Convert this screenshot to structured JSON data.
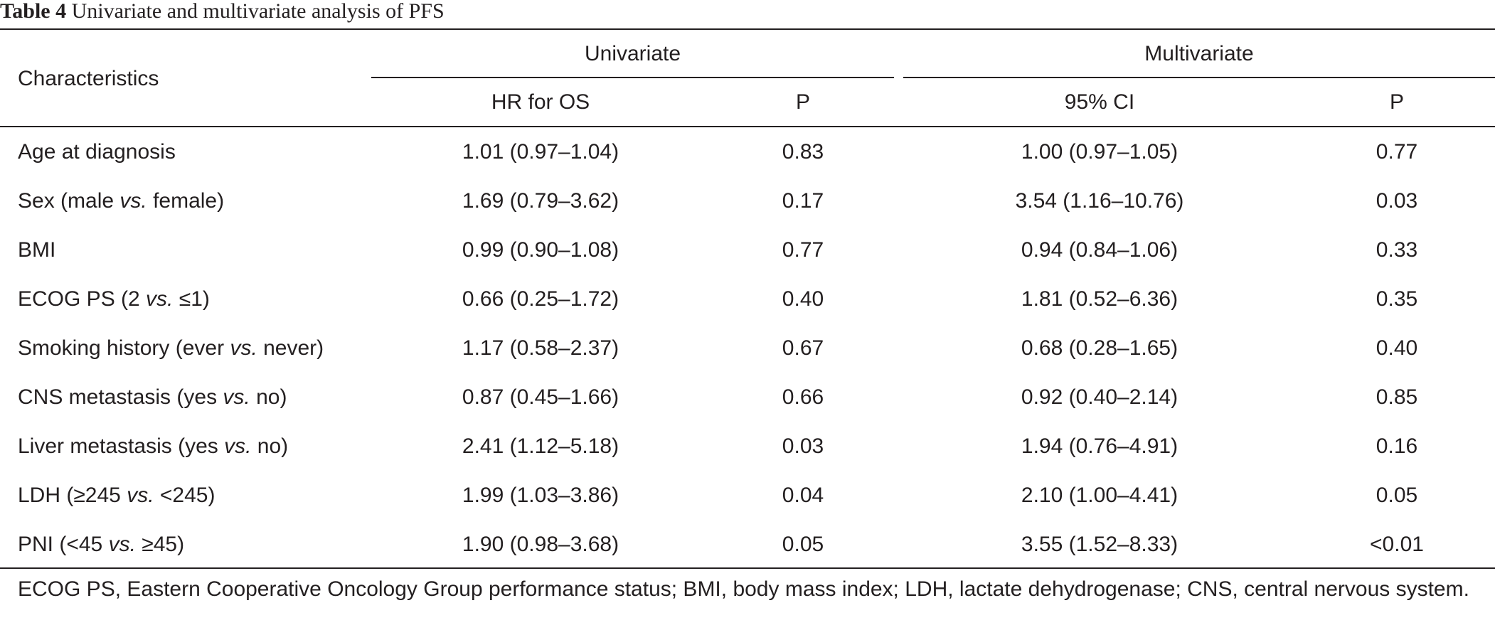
{
  "caption": {
    "label": "Table 4",
    "title": "Univariate and multivariate analysis of PFS"
  },
  "header": {
    "characteristics": "Characteristics",
    "group_univariate": "Univariate",
    "group_multivariate": "Multivariate",
    "hr_for_os": "HR for OS",
    "p_uni": "P",
    "ci_95": "95% CI",
    "p_multi": "P"
  },
  "rows": [
    {
      "label_pre": "Age at diagnosis",
      "label_vs": "",
      "label_post": "",
      "hr": "1.01 (0.97–1.04)",
      "p_uni": "0.83",
      "ci": "1.00 (0.97–1.05)",
      "p_multi": "0.77"
    },
    {
      "label_pre": "Sex (male ",
      "label_vs": "vs.",
      "label_post": " female)",
      "hr": "1.69 (0.79–3.62)",
      "p_uni": "0.17",
      "ci": "3.54 (1.16–10.76)",
      "p_multi": "0.03"
    },
    {
      "label_pre": "BMI",
      "label_vs": "",
      "label_post": "",
      "hr": "0.99 (0.90–1.08)",
      "p_uni": "0.77",
      "ci": "0.94 (0.84–1.06)",
      "p_multi": "0.33"
    },
    {
      "label_pre": "ECOG PS (2 ",
      "label_vs": "vs.",
      "label_post": " ≤1)",
      "hr": "0.66 (0.25–1.72)",
      "p_uni": "0.40",
      "ci": "1.81 (0.52–6.36)",
      "p_multi": "0.35"
    },
    {
      "label_pre": "Smoking history (ever ",
      "label_vs": "vs.",
      "label_post": " never)",
      "hr": "1.17 (0.58–2.37)",
      "p_uni": "0.67",
      "ci": "0.68 (0.28–1.65)",
      "p_multi": "0.40"
    },
    {
      "label_pre": "CNS metastasis (yes ",
      "label_vs": "vs.",
      "label_post": " no)",
      "hr": "0.87 (0.45–1.66)",
      "p_uni": "0.66",
      "ci": "0.92 (0.40–2.14)",
      "p_multi": "0.85"
    },
    {
      "label_pre": "Liver metastasis (yes ",
      "label_vs": "vs.",
      "label_post": " no)",
      "hr": "2.41 (1.12–5.18)",
      "p_uni": "0.03",
      "ci": "1.94 (0.76–4.91)",
      "p_multi": "0.16"
    },
    {
      "label_pre": "LDH (≥245 ",
      "label_vs": "vs.",
      "label_post": " <245)",
      "hr": "1.99 (1.03–3.86)",
      "p_uni": "0.04",
      "ci": "2.10 (1.00–4.41)",
      "p_multi": "0.05"
    },
    {
      "label_pre": "PNI (<45 ",
      "label_vs": "vs.",
      "label_post": " ≥45)",
      "hr": "1.90 (0.98–3.68)",
      "p_uni": "0.05",
      "ci": "3.55 (1.52–8.33)",
      "p_multi": "<0.01"
    }
  ],
  "footnote": "ECOG PS, Eastern Cooperative Oncology Group performance status; BMI, body mass index; LDH, lactate dehydrogenase; CNS, central nervous system."
}
